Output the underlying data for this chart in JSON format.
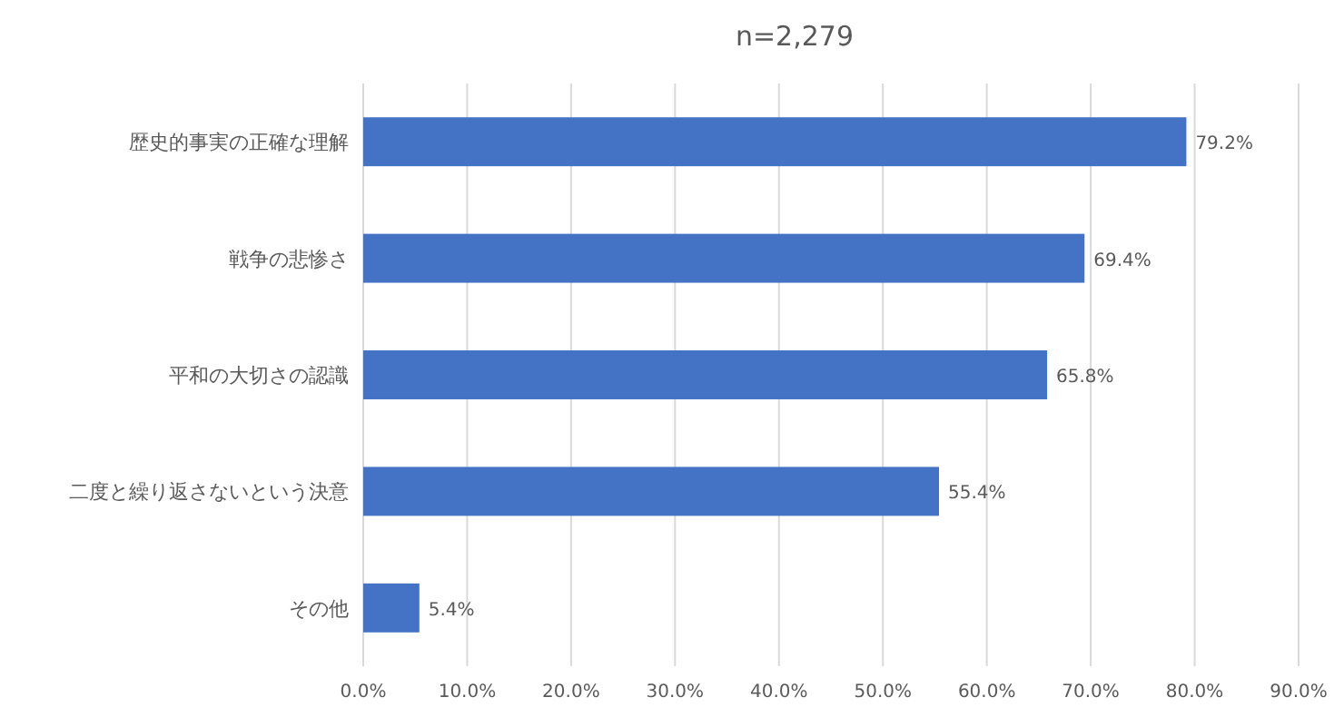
{
  "chart_data": {
    "type": "bar",
    "orientation": "horizontal",
    "title": "n=2,279",
    "categories": [
      "歴史的事実の正確な理解",
      "戦争の悲惨さ",
      "平和の大切さの認識",
      "二度と繰り返さないという決意",
      "その他"
    ],
    "values": [
      79.2,
      69.4,
      65.8,
      55.4,
      5.4
    ],
    "value_labels": [
      "79.2%",
      "69.4%",
      "65.8%",
      "55.4%",
      "5.4%"
    ],
    "color": "#4472c4",
    "xlim": [
      0,
      90
    ],
    "xticks": [
      {
        "value": 0,
        "label": "0.0%"
      },
      {
        "value": 10,
        "label": "10.0%"
      },
      {
        "value": 20,
        "label": "20.0%"
      },
      {
        "value": 30,
        "label": "30.0%"
      },
      {
        "value": 40,
        "label": "40.0%"
      },
      {
        "value": 50,
        "label": "50.0%"
      },
      {
        "value": 60,
        "label": "60.0%"
      },
      {
        "value": 70,
        "label": "70.0%"
      },
      {
        "value": 80,
        "label": "80.0%"
      },
      {
        "value": 90,
        "label": "90.0%"
      }
    ],
    "grid": "x"
  }
}
